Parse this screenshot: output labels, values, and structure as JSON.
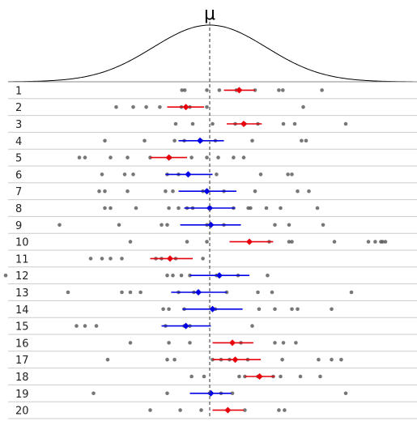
{
  "chart_data": {
    "type": "scatter",
    "title": "",
    "mu_label": "μ",
    "mu": 0,
    "xlim": [
      -3.9,
      4.5
    ],
    "curve": {
      "mean": 0,
      "sd": 1
    },
    "colors": {
      "points": "#555555",
      "ci_excludes_mu": "#e8000b",
      "ci_includes_mu": "#0000e6",
      "curve": "#000000",
      "mu_line": "#555555",
      "row_lines": "#cccccc"
    },
    "rows": [
      {
        "label": "1",
        "mean": 0.52,
        "ci": [
          0.25,
          0.8
        ],
        "color": "red",
        "points": [
          -0.49,
          -0.44,
          -0.05,
          0.17,
          0.47,
          0.53,
          0.8,
          1.22,
          1.29,
          1.98
        ]
      },
      {
        "label": "2",
        "mean": -0.42,
        "ci": [
          -0.75,
          -0.1
        ],
        "color": "red",
        "points": [
          -1.65,
          -1.35,
          -1.12,
          -0.88,
          -0.5,
          -0.35,
          -0.05,
          1.65
        ]
      },
      {
        "label": "3",
        "mean": 0.6,
        "ci": [
          0.3,
          0.92
        ],
        "color": "red",
        "points": [
          -0.6,
          -0.3,
          0.05,
          0.45,
          0.62,
          0.85,
          1.3,
          1.5,
          2.4
        ]
      },
      {
        "label": "4",
        "mean": -0.17,
        "ci": [
          -0.55,
          0.25
        ],
        "color": "blue",
        "points": [
          -1.85,
          -1.15,
          -0.62,
          -0.45,
          -0.15,
          0.1,
          0.75,
          1.62,
          1.7
        ]
      },
      {
        "label": "5",
        "mean": -0.72,
        "ci": [
          -1.05,
          -0.4
        ],
        "color": "red",
        "points": [
          -2.3,
          -2.2,
          -1.75,
          -1.45,
          -1.05,
          -0.7,
          -0.32,
          -0.05,
          0.15,
          0.42,
          0.6
        ]
      },
      {
        "label": "6",
        "mean": -0.38,
        "ci": [
          -0.78,
          0.05
        ],
        "color": "blue",
        "points": [
          -1.9,
          -1.5,
          -1.35,
          -0.75,
          -0.55,
          0.12,
          0.9,
          1.38,
          1.45
        ]
      },
      {
        "label": "7",
        "mean": -0.05,
        "ci": [
          -0.55,
          0.47
        ],
        "color": "blue",
        "points": [
          -1.95,
          -1.85,
          -1.45,
          -0.78,
          -0.65,
          -0.12,
          0.25,
          0.8,
          1.55,
          1.75
        ]
      },
      {
        "label": "8",
        "mean": 0.0,
        "ci": [
          -0.45,
          0.45
        ],
        "color": "blue",
        "points": [
          -1.85,
          -1.75,
          -1.3,
          -0.72,
          -0.55,
          -0.4,
          -0.3,
          0.42,
          0.68,
          0.72,
          1.0,
          1.25,
          1.9
        ]
      },
      {
        "label": "9",
        "mean": 0.02,
        "ci": [
          -0.52,
          0.55
        ],
        "color": "blue",
        "points": [
          -2.65,
          -1.6,
          -0.85,
          -0.75,
          -0.05,
          0.25,
          1.15,
          1.4,
          2.0
        ]
      },
      {
        "label": "10",
        "mean": 0.7,
        "ci": [
          0.35,
          1.12
        ],
        "color": "red",
        "points": [
          -1.4,
          -0.4,
          -0.05,
          1.05,
          1.4,
          1.45,
          2.2,
          2.8,
          2.92,
          3.02,
          3.05,
          3.1,
          3.88
        ]
      },
      {
        "label": "11",
        "mean": -0.7,
        "ci": [
          -1.05,
          -0.3
        ],
        "color": "red",
        "points": [
          -2.1,
          -1.9,
          -1.75,
          -1.55,
          -0.95,
          -0.85,
          -0.6,
          -0.12
        ]
      },
      {
        "label": "12",
        "mean": 0.17,
        "ci": [
          -0.35,
          0.7
        ],
        "color": "blue",
        "points": [
          -3.6,
          -0.75,
          -0.65,
          -0.5,
          -0.35,
          0.12,
          0.5,
          1.02
        ]
      },
      {
        "label": "13",
        "mean": -0.2,
        "ci": [
          -0.68,
          0.3
        ],
        "color": "blue",
        "points": [
          -2.5,
          -1.55,
          -1.4,
          -1.22,
          -0.55,
          -0.28,
          0.3,
          0.85,
          1.1,
          2.5
        ]
      },
      {
        "label": "14",
        "mean": 0.05,
        "ci": [
          -0.48,
          0.58
        ],
        "color": "blue",
        "points": [
          -3.88,
          -0.82,
          -0.72,
          -0.45,
          0.1,
          0.87,
          1.15,
          1.45,
          1.55,
          2.15
        ]
      },
      {
        "label": "15",
        "mean": -0.42,
        "ci": [
          -0.85,
          0.02
        ],
        "color": "blue",
        "points": [
          -2.35,
          -2.2,
          -2.0,
          -0.78,
          -0.45,
          -0.35,
          0.75
        ]
      },
      {
        "label": "16",
        "mean": 0.4,
        "ci": [
          0.05,
          0.77
        ],
        "color": "red",
        "points": [
          -1.4,
          -0.72,
          -0.35,
          0.55,
          1.15,
          1.3,
          1.52
        ]
      },
      {
        "label": "17",
        "mean": 0.45,
        "ci": [
          0.05,
          0.9
        ],
        "color": "red",
        "points": [
          -1.8,
          -0.75,
          -0.62,
          0.05,
          0.2,
          0.35,
          0.67,
          1.28,
          1.92,
          2.15,
          2.32
        ]
      },
      {
        "label": "18",
        "mean": 0.88,
        "ci": [
          0.62,
          1.15
        ],
        "color": "red",
        "points": [
          -0.32,
          -0.1,
          0.52,
          0.62,
          0.85,
          1.12,
          1.25,
          1.6,
          1.95
        ]
      },
      {
        "label": "19",
        "mean": 0.02,
        "ci": [
          -0.35,
          0.38
        ],
        "color": "blue",
        "points": [
          -2.05,
          -0.75,
          0.0,
          0.2,
          0.4,
          2.4
        ]
      },
      {
        "label": "20",
        "mean": 0.32,
        "ci": [
          0.05,
          0.6
        ],
        "color": "red",
        "points": [
          -1.05,
          -0.52,
          -0.15,
          0.62,
          1.22,
          1.32
        ]
      }
    ]
  }
}
